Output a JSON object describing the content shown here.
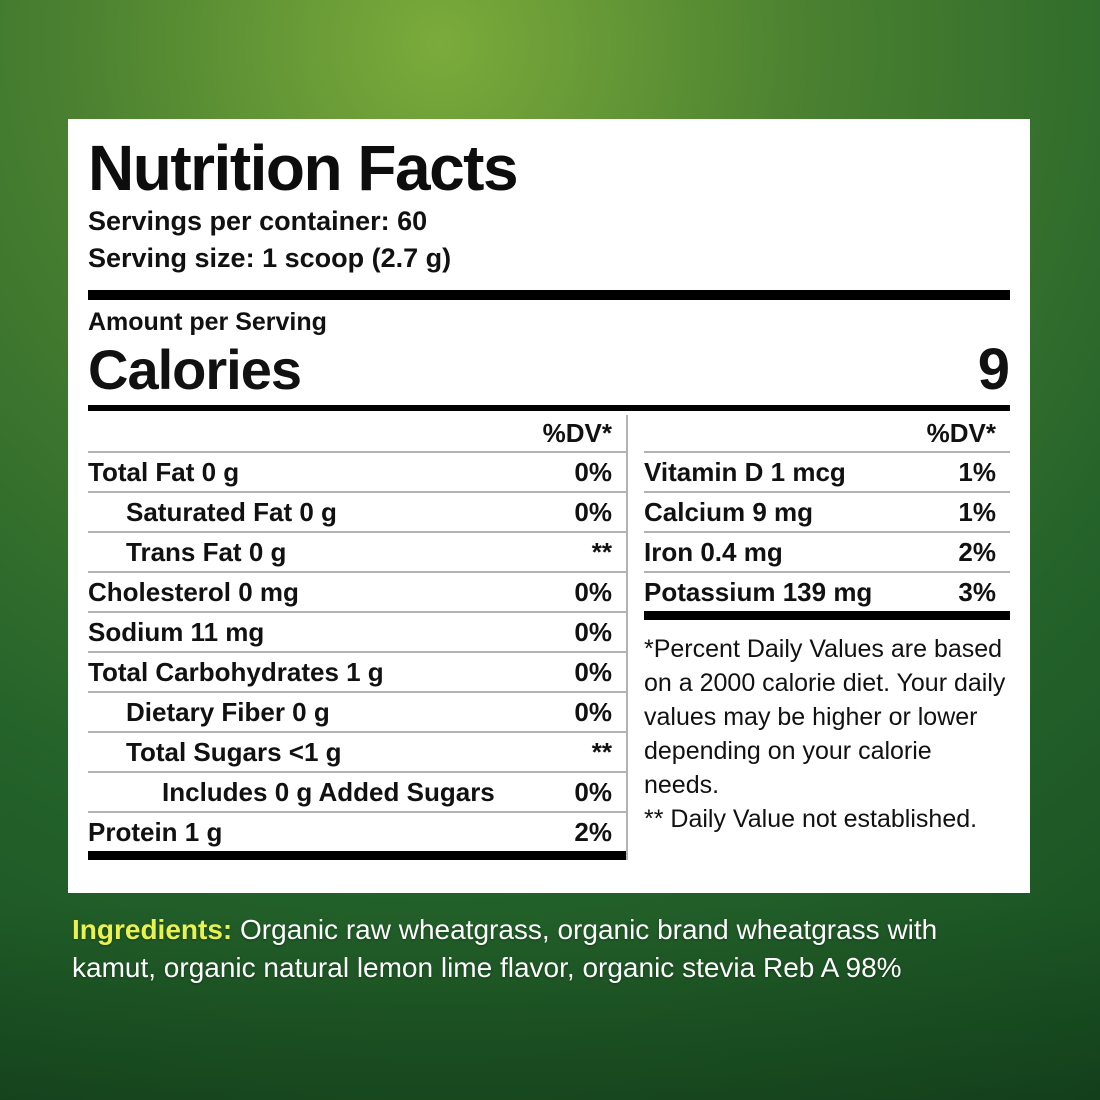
{
  "background": {
    "gradient_bright": "#7bab3b",
    "gradient_dark": "#174d21"
  },
  "label": {
    "title": "Nutrition Facts",
    "servings_per_container": "Servings per container: 60",
    "serving_size": "Serving size: 1 scoop (2.7 g)",
    "amount_per_serving": "Amount per Serving",
    "calories_label": "Calories",
    "calories_value": "9",
    "dv_header_left": "%DV*",
    "dv_header_right": "%DV*",
    "left_rows": [
      {
        "name": "Total Fat 0 g",
        "dv": "0%"
      },
      {
        "name": "Saturated Fat 0 g",
        "dv": "0%"
      },
      {
        "name": "Trans Fat 0 g",
        "dv": "**"
      },
      {
        "name": "Cholesterol 0 mg",
        "dv": "0%"
      },
      {
        "name": "Sodium 11 mg",
        "dv": "0%"
      },
      {
        "name": "Total Carbohydrates 1 g",
        "dv": "0%"
      },
      {
        "name": "Dietary Fiber 0 g",
        "dv": "0%"
      },
      {
        "name": "Total Sugars <1 g",
        "dv": "**"
      },
      {
        "name": "Includes 0 g Added Sugars",
        "dv": "0%"
      },
      {
        "name": "Protein 1 g",
        "dv": "2%"
      }
    ],
    "right_rows": [
      {
        "name": "Vitamin D 1 mcg",
        "dv": "1%"
      },
      {
        "name": "Calcium 9 mg",
        "dv": "1%"
      },
      {
        "name": "Iron 0.4 mg",
        "dv": "2%"
      },
      {
        "name": "Potassium 139 mg",
        "dv": "3%"
      }
    ],
    "footnote_daily_values": "*Percent Daily Values are based on a 2000 calorie diet. Your daily values may be higher or lower depending on your calorie needs.",
    "footnote_not_established": "** Daily Value not established."
  },
  "ingredients": {
    "label": "Ingredients:",
    "label_color": "#e8f251",
    "text": " Organic raw wheatgrass, organic brand wheatgrass with kamut, organic natural lemon lime flavor, organic stevia Reb A 98%"
  }
}
